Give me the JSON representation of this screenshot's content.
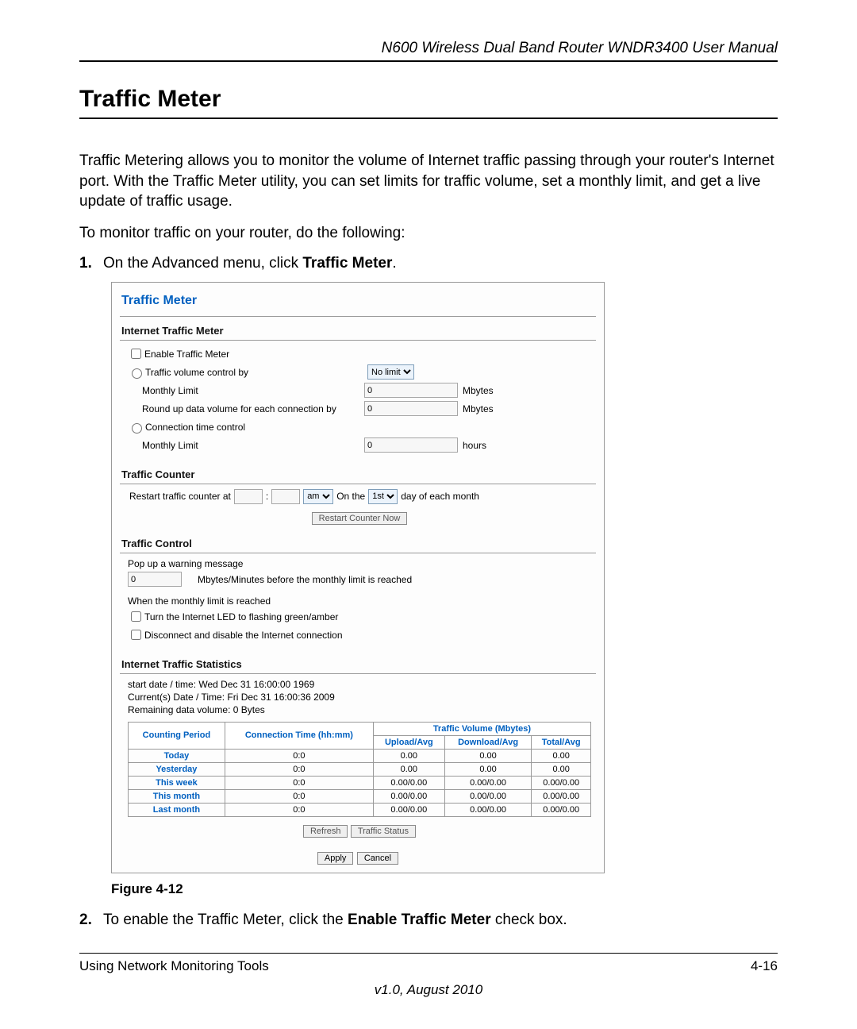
{
  "header": {
    "product": "N600 Wireless Dual Band Router WNDR3400 User Manual"
  },
  "heading": "Traffic Meter",
  "intro": {
    "p1": "Traffic Metering allows you to monitor the volume of Internet traffic passing through your router's Internet port. With the Traffic Meter utility, you can set limits for traffic volume, set a monthly limit, and get a live update of traffic usage.",
    "p2": "To monitor traffic on your router, do the following:"
  },
  "steps": {
    "s1_num": "1.",
    "s1_a": "On the Advanced menu, click ",
    "s1_b": "Traffic Meter",
    "s1_c": ".",
    "s2_num": "2.",
    "s2_a": "To enable the Traffic Meter, click the ",
    "s2_b": "Enable Traffic Meter",
    "s2_c": " check box."
  },
  "panel": {
    "title": "Traffic Meter",
    "sec_meter": "Internet Traffic Meter",
    "enable_label": "Enable Traffic Meter",
    "vol_label": "Traffic volume control by",
    "vol_select": "No limit",
    "monthly_limit_label": "Monthly Limit",
    "monthly_limit_val": "0",
    "mbytes": "Mbytes",
    "roundup_label": "Round up data volume for each connection by",
    "roundup_val": "0",
    "conn_time_label": "Connection time control",
    "conn_monthly_label": "Monthly Limit",
    "conn_monthly_val": "0",
    "hours": "hours",
    "sec_counter": "Traffic Counter",
    "restart_label": "Restart traffic counter at",
    "restart_hour": "",
    "restart_min": "",
    "ampm": "am",
    "onthe": "On the",
    "day_sel": "1st",
    "dayofmonth": "day of each month",
    "restart_btn": "Restart Counter Now",
    "sec_control": "Traffic Control",
    "popup_label": "Pop up a warning message",
    "popup_val": "0",
    "popup_after": "Mbytes/Minutes before the monthly limit is reached",
    "when_label": "When the monthly limit is reached",
    "led_label": "Turn the Internet LED to flashing green/amber",
    "disc_label": "Disconnect and disable the Internet connection",
    "sec_stats": "Internet Traffic Statistics",
    "start_date": "start date / time: Wed Dec 31 16:00:00 1969",
    "current_date": "Current(s) Date / Time: Fri Dec 31 16:00:36 2009",
    "remaining": "Remaining data volume: 0 Bytes",
    "th_period": "Counting Period",
    "th_conn": "Connection Time (hh:mm)",
    "th_vol": "Traffic Volume (Mbytes)",
    "th_up": "Upload/Avg",
    "th_down": "Download/Avg",
    "th_total": "Total/Avg",
    "rows": [
      {
        "period": "Today",
        "conn": "0:0",
        "up": "0.00",
        "down": "0.00",
        "total": "0.00"
      },
      {
        "period": "Yesterday",
        "conn": "0:0",
        "up": "0.00",
        "down": "0.00",
        "total": "0.00"
      },
      {
        "period": "This week",
        "conn": "0:0",
        "up": "0.00/0.00",
        "down": "0.00/0.00",
        "total": "0.00/0.00"
      },
      {
        "period": "This month",
        "conn": "0:0",
        "up": "0.00/0.00",
        "down": "0.00/0.00",
        "total": "0.00/0.00"
      },
      {
        "period": "Last month",
        "conn": "0:0",
        "up": "0.00/0.00",
        "down": "0.00/0.00",
        "total": "0.00/0.00"
      }
    ],
    "btn_refresh": "Refresh",
    "btn_status": "Traffic Status",
    "btn_apply": "Apply",
    "btn_cancel": "Cancel"
  },
  "figure_label": "Figure 4-12",
  "footer": {
    "left": "Using Network Monitoring Tools",
    "right": "4-16",
    "version": "v1.0, August 2010"
  }
}
